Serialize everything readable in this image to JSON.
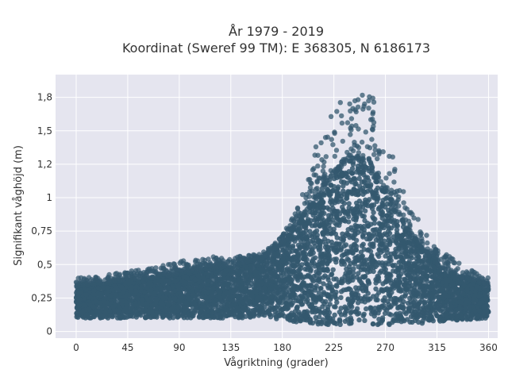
{
  "chart_data": {
    "type": "scatter",
    "title_line1": "År 1979 - 2019",
    "title_line2": "Koordinat (Sweref 99 TM): E 368305, N 6186173",
    "xlabel": "Vågriktning (grader)",
    "ylabel": "Signifikant våghöjd (m)",
    "xlim": [
      -18,
      368
    ],
    "ylim": [
      -0.05,
      1.92
    ],
    "x_ticks": [
      0,
      45,
      90,
      135,
      180,
      225,
      270,
      315,
      360
    ],
    "x_tick_labels": [
      "0",
      "45",
      "90",
      "135",
      "180",
      "225",
      "270",
      "315",
      "360"
    ],
    "y_ticks": [
      0,
      0.25,
      0.5,
      0.75,
      1,
      1.25,
      1.5,
      1.75
    ],
    "y_tick_labels": [
      "0",
      "0,25",
      "0,5",
      "0,75",
      "1",
      "1,2",
      "1,5",
      "1,8"
    ],
    "grid": true,
    "marker_color": "#34586f",
    "background_color": "#e5e5ef",
    "envelope": {
      "direction": [
        0,
        15,
        30,
        45,
        60,
        75,
        90,
        105,
        120,
        135,
        150,
        165,
        180,
        195,
        210,
        225,
        240,
        255,
        270,
        285,
        300,
        315,
        330,
        345,
        360
      ],
      "typical_min_height": [
        0.1,
        0.1,
        0.1,
        0.1,
        0.1,
        0.1,
        0.1,
        0.1,
        0.1,
        0.1,
        0.1,
        0.1,
        0.09,
        0.06,
        0.05,
        0.05,
        0.05,
        0.05,
        0.05,
        0.05,
        0.06,
        0.07,
        0.08,
        0.09,
        0.1
      ],
      "typical_max_height": [
        0.34,
        0.35,
        0.37,
        0.38,
        0.39,
        0.41,
        0.43,
        0.45,
        0.47,
        0.49,
        0.52,
        0.56,
        0.66,
        0.82,
        1.02,
        1.18,
        1.3,
        1.28,
        1.06,
        0.82,
        0.64,
        0.5,
        0.43,
        0.38,
        0.35
      ],
      "peak_max_height": [
        0.4,
        0.41,
        0.43,
        0.45,
        0.47,
        0.49,
        0.53,
        0.55,
        0.56,
        0.56,
        0.57,
        0.6,
        0.72,
        0.95,
        1.42,
        1.72,
        1.84,
        1.86,
        1.5,
        1.06,
        0.82,
        0.62,
        0.55,
        0.46,
        0.4
      ]
    }
  }
}
